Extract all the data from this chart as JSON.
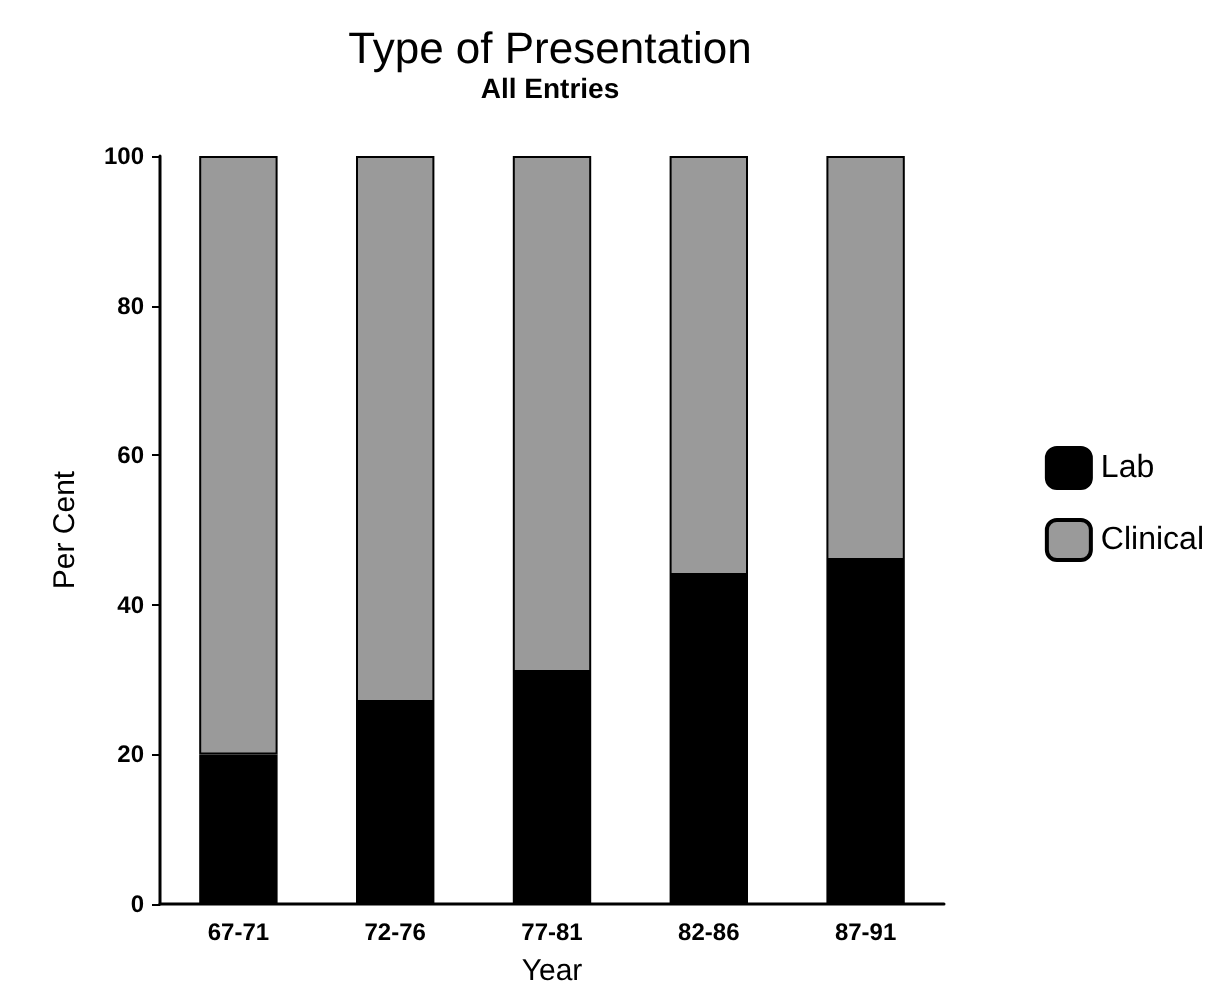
{
  "chart_data": {
    "type": "bar",
    "title": "Type of Presentation",
    "subtitle": "All Entries",
    "xlabel": "Year",
    "ylabel": "Per Cent",
    "categories": [
      "67-71",
      "72-76",
      "77-81",
      "82-86",
      "87-91"
    ],
    "series": [
      {
        "name": "Lab",
        "color": "#000000",
        "values": [
          20,
          27,
          31,
          44,
          46
        ]
      },
      {
        "name": "Clinical",
        "color": "#9a9a9a",
        "values": [
          80,
          73,
          69,
          56,
          54
        ]
      }
    ],
    "stacked": true,
    "ylim": [
      0,
      100
    ],
    "yticks": [
      0,
      20,
      40,
      60,
      80,
      100
    ],
    "grid": false,
    "legend": "right"
  }
}
